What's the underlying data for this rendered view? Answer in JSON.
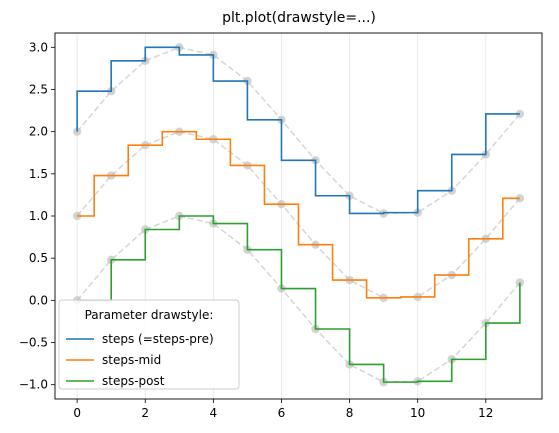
{
  "chart_data": {
    "type": "line",
    "title": "plt.plot(drawstyle=...)",
    "xlabel": "",
    "ylabel": "",
    "xlim": [
      -0.65,
      13.65
    ],
    "ylim": [
      -1.17,
      3.17
    ],
    "x_ticks": [
      0,
      2,
      4,
      6,
      8,
      10,
      12
    ],
    "y_ticks": [
      -1.0,
      -0.5,
      0.0,
      0.5,
      1.0,
      1.5,
      2.0,
      2.5,
      3.0
    ],
    "y_tick_labels": [
      "−1.0",
      "−0.5",
      "0.0",
      "0.5",
      "1.0",
      "1.5",
      "2.0",
      "2.5",
      "3.0"
    ],
    "grid": "x-axis only",
    "legend": {
      "title": "Parameter drawstyle:",
      "placement": "lower-left"
    },
    "x": [
      0,
      1,
      2,
      3,
      4,
      5,
      6,
      7,
      8,
      9,
      10,
      11,
      12,
      13
    ],
    "reference": {
      "color": "#bbbbbb",
      "marker_color": "#c0c0c0",
      "style": "dashed line with circle markers"
    },
    "series": [
      {
        "name": "steps (=steps-pre)",
        "drawstyle": "steps-pre",
        "color": "#1f77b4",
        "values": [
          2.0,
          2.48,
          2.84,
          3.0,
          2.91,
          2.6,
          2.14,
          1.66,
          1.24,
          1.03,
          1.04,
          1.3,
          1.73,
          2.21
        ]
      },
      {
        "name": "steps-mid",
        "drawstyle": "steps-mid",
        "color": "#ff7f0e",
        "values": [
          1.0,
          1.48,
          1.84,
          2.0,
          1.91,
          1.6,
          1.14,
          0.66,
          0.24,
          0.03,
          0.04,
          0.3,
          0.73,
          1.21
        ]
      },
      {
        "name": "steps-post",
        "drawstyle": "steps-post",
        "color": "#2ca02c",
        "values": [
          0.0,
          0.48,
          0.84,
          1.0,
          0.91,
          0.6,
          0.14,
          -0.34,
          -0.76,
          -0.97,
          -0.96,
          -0.7,
          -0.27,
          0.21
        ]
      }
    ]
  }
}
